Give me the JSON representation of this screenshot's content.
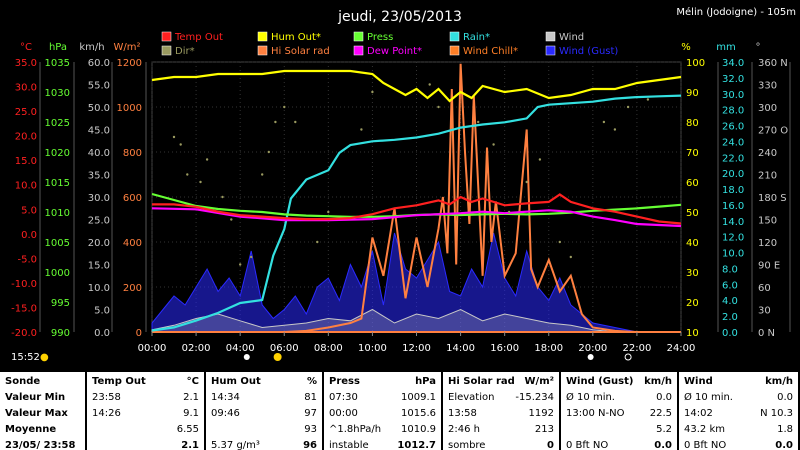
{
  "title": "jeudi, 23/05/2013",
  "location": "Mélin (Jodoigne) - 105m",
  "time_now": "15:52",
  "units_left": [
    "°C",
    "hPa",
    "km/h",
    "W/m²"
  ],
  "units_right": [
    "%",
    "mm",
    "°"
  ],
  "legend": [
    {
      "label": "Temp Out",
      "color": "#ff2020"
    },
    {
      "label": "Hum Out*",
      "color": "#ffff00"
    },
    {
      "label": "Press",
      "color": "#66ff33"
    },
    {
      "label": "Rain*",
      "color": "#33e0e0"
    },
    {
      "label": "Wind",
      "color": "#c8c8c8"
    },
    {
      "label": "Dir*",
      "color": "#9a9a60"
    },
    {
      "label": "Hi Solar rad",
      "color": "#ff8040"
    },
    {
      "label": "Dew Point*",
      "color": "#ff00ff"
    },
    {
      "label": "Wind Chill*",
      "color": "#ff7f27"
    },
    {
      "label": "Wind (Gust)",
      "color": "#2a2aff"
    }
  ],
  "axis_temp": [
    "35.0",
    "30.0",
    "25.0",
    "20.0",
    "15.0",
    "10.0",
    "5.0",
    "0.0",
    "-5.0",
    "-10.0",
    "-15.0",
    "-20.0"
  ],
  "axis_press": [
    "1035",
    "1030",
    "1025",
    "1020",
    "1015",
    "1010",
    "1005",
    "1000",
    "995",
    "990"
  ],
  "axis_wind": [
    "60.0",
    "55.0",
    "50.0",
    "45.0",
    "40.0",
    "35.0",
    "30.0",
    "25.0",
    "20.0",
    "15.0",
    "10.0",
    "5.0",
    "0.0"
  ],
  "axis_solar": [
    "1200",
    "1000",
    "800",
    "600",
    "400",
    "200",
    "0"
  ],
  "axis_hum": [
    "100",
    "90",
    "80",
    "70",
    "60",
    "50",
    "40",
    "30",
    "20",
    "10"
  ],
  "axis_rain": [
    "34.0",
    "32.0",
    "30.0",
    "28.0",
    "26.0",
    "24.0",
    "22.0",
    "20.0",
    "18.0",
    "16.0",
    "14.0",
    "12.0",
    "10.0",
    "8.0",
    "6.0",
    "4.0",
    "2.0",
    "0.0"
  ],
  "axis_dir": [
    "360 N",
    "330",
    "300",
    "270 O",
    "240",
    "210",
    "180 S",
    "150",
    "120",
    "90 E",
    "60",
    "30",
    "0 N"
  ],
  "x_ticks": [
    "00:00",
    "02:00",
    "04:00",
    "06:00",
    "08:00",
    "10:00",
    "12:00",
    "14:00",
    "16:00",
    "18:00",
    "20:00",
    "22:00",
    "24:00"
  ],
  "chart_data": {
    "type": "line",
    "title": "jeudi, 23/05/2013",
    "x_unit": "hours",
    "xlim": [
      0,
      24
    ],
    "series": [
      {
        "name": "Temp Out",
        "axis": "°C",
        "color": "#ff2020",
        "x": [
          0,
          1,
          2,
          3,
          4,
          5,
          6,
          7,
          8,
          9,
          10,
          11,
          12,
          13,
          13.5,
          14,
          14.5,
          15,
          16,
          17,
          18,
          18.5,
          19,
          20,
          21,
          22,
          23,
          24
        ],
        "y": [
          6.0,
          6.0,
          5.5,
          4.5,
          3.8,
          3.5,
          3.2,
          3.0,
          3.0,
          3.2,
          4.0,
          5.2,
          5.8,
          6.8,
          6.0,
          7.5,
          6.5,
          7.2,
          5.8,
          6.2,
          6.5,
          8.0,
          6.5,
          5.2,
          4.5,
          3.5,
          2.5,
          2.1
        ]
      },
      {
        "name": "Hum Out*",
        "axis": "%",
        "color": "#ffff00",
        "x": [
          0,
          1,
          2,
          3,
          4,
          5,
          6,
          7,
          8,
          9,
          10,
          10.5,
          11,
          11.5,
          12,
          12.5,
          13,
          13.5,
          14,
          14.5,
          15,
          16,
          17,
          18,
          19,
          20,
          21,
          22,
          23,
          24
        ],
        "y": [
          94,
          95,
          95,
          96,
          96,
          96,
          97,
          97,
          97,
          97,
          96,
          93,
          91,
          89,
          91,
          88,
          91,
          87,
          90,
          88,
          92,
          90,
          91,
          88,
          89,
          91,
          91,
          93,
          94,
          95
        ]
      },
      {
        "name": "Press",
        "axis": "hPa",
        "color": "#66ff33",
        "x": [
          0,
          1,
          2,
          3,
          4,
          5,
          6,
          7,
          8,
          9,
          10,
          11,
          12,
          13,
          14,
          15,
          16,
          17,
          18,
          19,
          20,
          21,
          22,
          23,
          24
        ],
        "y": [
          1013.0,
          1012.0,
          1011.0,
          1010.5,
          1010.2,
          1010.0,
          1009.6,
          1009.4,
          1009.3,
          1009.2,
          1009.2,
          1009.3,
          1009.5,
          1009.6,
          1009.5,
          1009.6,
          1009.7,
          1009.6,
          1009.7,
          1009.9,
          1010.2,
          1010.4,
          1010.6,
          1010.9,
          1011.2
        ]
      },
      {
        "name": "Dew Point*",
        "axis": "°C",
        "color": "#ff00ff",
        "x": [
          0,
          2,
          4,
          6,
          8,
          10,
          12,
          14,
          15,
          16,
          17,
          18,
          19,
          20,
          21,
          22,
          23,
          24
        ],
        "y": [
          5.2,
          5.0,
          3.5,
          2.8,
          2.8,
          3.0,
          3.8,
          4.2,
          4.5,
          4.2,
          4.5,
          4.8,
          4.5,
          3.5,
          2.8,
          2.0,
          1.8,
          1.6
        ]
      },
      {
        "name": "Rain*",
        "axis": "mm",
        "color": "#33e0e0",
        "x": [
          0,
          1,
          2,
          3,
          4,
          4.5,
          5,
          5.5,
          6,
          6.3,
          7,
          8,
          8.5,
          9,
          10,
          11,
          12,
          13,
          14,
          15,
          16,
          17,
          17.5,
          18,
          19,
          20,
          21,
          22,
          23,
          24
        ],
        "y": [
          0.2,
          0.6,
          1.5,
          2.5,
          3.8,
          4.0,
          4.2,
          10.0,
          13.5,
          17.5,
          20.0,
          21.2,
          23.5,
          24.5,
          25.0,
          25.2,
          25.5,
          26.0,
          26.8,
          27.2,
          27.5,
          28.0,
          29.5,
          29.8,
          30.0,
          30.2,
          30.6,
          30.8,
          30.9,
          31.0
        ]
      },
      {
        "name": "Hi Solar rad",
        "axis": "W/m²",
        "color": "#ff8040",
        "x": [
          0,
          4,
          5,
          6,
          7,
          8,
          9,
          9.5,
          10,
          10.5,
          11,
          11.5,
          12,
          12.5,
          13,
          13.2,
          13.4,
          13.6,
          13.8,
          14,
          14.2,
          14.4,
          14.6,
          15,
          15.2,
          15.4,
          15.6,
          16,
          16.5,
          17,
          17.2,
          17.5,
          18,
          18.5,
          19,
          19.5,
          20,
          21,
          22,
          24
        ],
        "y": [
          0,
          0,
          0,
          0,
          5,
          20,
          40,
          60,
          420,
          250,
          550,
          150,
          420,
          200,
          460,
          600,
          350,
          1080,
          300,
          1192,
          800,
          480,
          1050,
          250,
          820,
          400,
          580,
          250,
          350,
          900,
          280,
          200,
          320,
          180,
          250,
          80,
          20,
          5,
          0,
          0
        ]
      },
      {
        "name": "Wind (Gust)",
        "axis": "km/h",
        "color": "#2a2aff",
        "x": [
          0,
          0.5,
          1,
          1.5,
          2,
          2.5,
          3,
          3.5,
          4,
          4.5,
          5,
          5.5,
          6,
          6.5,
          7,
          7.5,
          8,
          8.5,
          9,
          9.5,
          10,
          10.5,
          11,
          11.5,
          12,
          12.5,
          13,
          13.5,
          14,
          14.5,
          15,
          15.5,
          16,
          16.5,
          17,
          17.5,
          18,
          18.5,
          19,
          19.5,
          20,
          21,
          22,
          24
        ],
        "y": [
          2,
          5,
          8,
          6,
          10,
          14,
          9,
          12,
          8,
          18,
          6,
          3,
          5,
          8,
          4,
          10,
          12,
          7,
          15,
          10,
          18,
          6,
          22,
          14,
          12,
          16,
          20,
          9,
          8,
          14,
          10,
          22,
          12,
          8,
          18,
          10,
          7,
          12,
          6,
          4,
          2,
          1,
          0,
          0
        ]
      },
      {
        "name": "Wind",
        "axis": "km/h",
        "color": "#c8c8c8",
        "x": [
          0,
          1,
          2,
          3,
          4,
          5,
          6,
          7,
          8,
          9,
          10,
          11,
          12,
          13,
          14,
          15,
          16,
          17,
          18,
          19,
          20,
          21,
          22,
          24
        ],
        "y": [
          0.5,
          1.5,
          3,
          4,
          2.5,
          1,
          1.5,
          2,
          3,
          2.5,
          5,
          2,
          4,
          3,
          5,
          2.5,
          4,
          3,
          2,
          1.5,
          0.5,
          0,
          0,
          0
        ]
      }
    ]
  },
  "panels": [
    {
      "header": [
        "Sonde",
        ""
      ],
      "rows": [
        [
          "Valeur Min",
          ""
        ],
        [
          "Valeur Max",
          ""
        ],
        [
          "Moyenne",
          ""
        ],
        [
          "23/05/ 23:58",
          ""
        ]
      ]
    },
    {
      "header": [
        "Temp Out",
        "°C"
      ],
      "rows": [
        [
          "23:58",
          "2.1"
        ],
        [
          "14:26",
          "9.1"
        ],
        [
          "",
          "6.55"
        ],
        [
          "",
          "2.1"
        ]
      ]
    },
    {
      "header": [
        "Hum Out",
        "%"
      ],
      "rows": [
        [
          "14:34",
          "81"
        ],
        [
          "09:46",
          "97"
        ],
        [
          "",
          "93"
        ],
        [
          "5.37 g/m³",
          "96"
        ]
      ]
    },
    {
      "header": [
        "Press",
        "hPa"
      ],
      "rows": [
        [
          "07:30",
          "1009.1"
        ],
        [
          "00:00",
          "1015.6"
        ],
        [
          "^1.8hPa/h",
          "1010.9"
        ],
        [
          "instable",
          "1012.7"
        ]
      ]
    },
    {
      "header": [
        "Hi Solar rad",
        "W/m²"
      ],
      "rows": [
        [
          "Elevation",
          "-15.234"
        ],
        [
          "13:58",
          "1192"
        ],
        [
          "2:46 h",
          "213"
        ],
        [
          "sombre",
          "0"
        ]
      ]
    },
    {
      "header": [
        "Wind (Gust)",
        "km/h"
      ],
      "rows": [
        [
          "Ø 10 min.",
          "0.0"
        ],
        [
          "13:00   N-NO",
          "22.5"
        ],
        [
          "",
          "5.2"
        ],
        [
          "0 Bft NO",
          "0.0"
        ]
      ]
    },
    {
      "header": [
        "Wind",
        "km/h"
      ],
      "rows": [
        [
          "Ø 10 min.",
          "0.0"
        ],
        [
          "14:02",
          "N 10.3"
        ],
        [
          "43.2 km",
          "1.8"
        ],
        [
          "0 Bft NO",
          "0.0"
        ]
      ]
    }
  ]
}
